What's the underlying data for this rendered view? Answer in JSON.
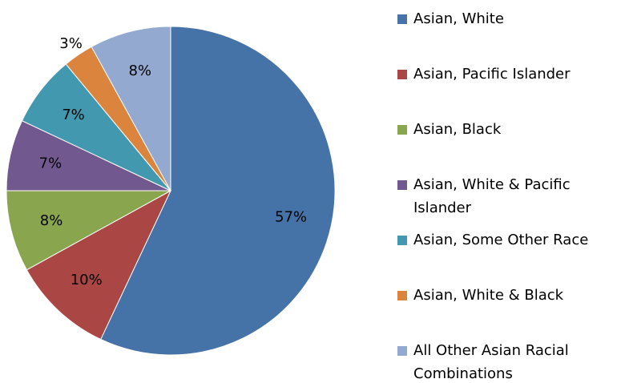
{
  "chart_data": {
    "type": "pie",
    "categories": [
      "Asian, White",
      "Asian, Pacific Islander",
      "Asian, Black",
      "Asian, White & Pacific Islander",
      "Asian, Some Other Race",
      "Asian, White & Black",
      "All Other Asian Racial Combinations"
    ],
    "values": [
      57,
      10,
      8,
      7,
      7,
      3,
      8
    ],
    "value_labels": [
      "57%",
      "10%",
      "8%",
      "7%",
      "7%",
      "3%",
      "8%"
    ],
    "colors": [
      "#4572a7",
      "#aa4643",
      "#89a54e",
      "#71588f",
      "#4198af",
      "#db843d",
      "#93a9cf"
    ],
    "legend": "right"
  }
}
